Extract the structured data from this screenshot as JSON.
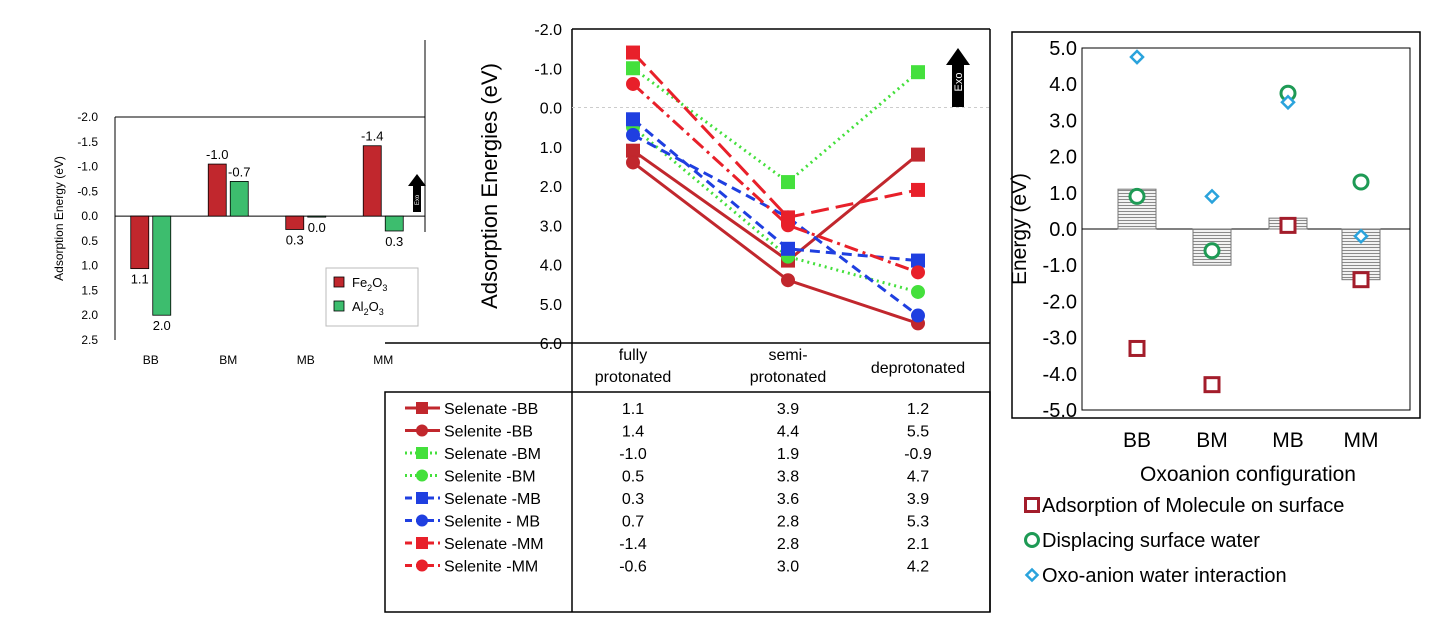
{
  "chart_data": [
    {
      "type": "bar",
      "ylabel": "Adsorption Energy (eV)",
      "categories": [
        "BB",
        "BM",
        "MB",
        "MM"
      ],
      "ylim": [
        -2.0,
        2.5
      ],
      "y_inverted": true,
      "yticks": [
        "-2.0",
        "-1.5",
        "-1.0",
        "-0.5",
        "0.0",
        "0.5",
        "1.0",
        "1.5",
        "2.0",
        "2.5"
      ],
      "ytick_values": [
        -2.0,
        -1.5,
        -1.0,
        -0.5,
        0.0,
        0.5,
        1.0,
        1.5,
        2.0,
        2.5
      ],
      "series": [
        {
          "name": "Fe2O3",
          "color": "#c1272d",
          "values": [
            1.06,
            -1.05,
            0.27,
            -1.42
          ],
          "labels": [
            "1.1",
            "-1.0",
            "0.3",
            "-1.4"
          ]
        },
        {
          "name": "Al2O3",
          "color": "#3dbd6e",
          "values": [
            2.0,
            -0.7,
            0.02,
            0.3
          ],
          "labels": [
            "2.0",
            "-0.7",
            "0.0",
            "0.3"
          ]
        }
      ],
      "legend_position": "bottom-right",
      "arrow_label": "Exo"
    },
    {
      "type": "line",
      "ylabel": "Adsorption Energies (eV)",
      "ylim": [
        -2.0,
        6.0
      ],
      "y_inverted": true,
      "yticks": [
        "-2.0",
        "-1.0",
        "0.0",
        "1.0",
        "2.0",
        "3.0",
        "4.0",
        "5.0",
        "6.0"
      ],
      "ytick_values": [
        -2,
        -1,
        0,
        1,
        2,
        3,
        4,
        5,
        6
      ],
      "categories": [
        "fully protonated",
        "semi-protonated",
        "deprotonated"
      ],
      "category_lines": [
        [
          "fully",
          "protonated"
        ],
        [
          "semi-",
          "protonated"
        ],
        [
          "deprotonated"
        ]
      ],
      "arrow_label": "Exo",
      "series": [
        {
          "name": "Selenate -BB",
          "values": [
            1.1,
            3.9,
            1.2
          ],
          "display": [
            "1.1",
            "3.9",
            "1.2"
          ],
          "color": "#c1272d",
          "marker": "square",
          "dash": "solid"
        },
        {
          "name": "Selenite -BB",
          "values": [
            1.4,
            4.4,
            5.5
          ],
          "display": [
            "1.4",
            "4.4",
            "5.5"
          ],
          "color": "#c1272d",
          "marker": "circle",
          "dash": "solid"
        },
        {
          "name": "Selenate -BM",
          "values": [
            -1.0,
            1.9,
            -0.9
          ],
          "display": [
            "-1.0",
            "1.9",
            "-0.9"
          ],
          "color": "#44e03c",
          "marker": "square",
          "dash": "dot"
        },
        {
          "name": "Selenite -BM",
          "values": [
            0.5,
            3.8,
            4.7
          ],
          "display": [
            "0.5",
            "3.8",
            "4.7"
          ],
          "color": "#44e03c",
          "marker": "circle",
          "dash": "dot"
        },
        {
          "name": "Selenate -MB",
          "values": [
            0.3,
            3.6,
            3.9
          ],
          "display": [
            "0.3",
            "3.6",
            "3.9"
          ],
          "color": "#1f3fe0",
          "marker": "square",
          "dash": "dash"
        },
        {
          "name": "Selenite - MB",
          "values": [
            0.7,
            2.8,
            5.3
          ],
          "display": [
            "0.7",
            "2.8",
            "5.3"
          ],
          "color": "#1f3fe0",
          "marker": "circle",
          "dash": "dash"
        },
        {
          "name": "Selenate -MM",
          "values": [
            -1.4,
            2.8,
            2.1
          ],
          "display": [
            "-1.4",
            "2.8",
            "2.1"
          ],
          "color": "#e8202a",
          "marker": "square",
          "dash": "longdash"
        },
        {
          "name": "Selenite -MM",
          "values": [
            -0.6,
            3.0,
            4.2
          ],
          "display": [
            "-0.6",
            "3.0",
            "4.2"
          ],
          "color": "#e8202a",
          "marker": "circle",
          "dash": "dashdot"
        }
      ]
    },
    {
      "type": "scatter",
      "ylabel": "Energy (eV)",
      "xlabel": "Oxoanion configuration",
      "categories": [
        "BB",
        "BM",
        "MB",
        "MM"
      ],
      "ylim": [
        -5.0,
        5.0
      ],
      "yticks": [
        "5.0",
        "4.0",
        "3.0",
        "2.0",
        "1.0",
        "0.0",
        "-1.0",
        "-2.0",
        "-3.0",
        "-4.0",
        "-5.0"
      ],
      "ytick_values": [
        5,
        4,
        3,
        2,
        1,
        0,
        -1,
        -2,
        -3,
        -4,
        -5
      ],
      "bar_values": [
        1.1,
        -1.0,
        0.3,
        -1.4
      ],
      "series": [
        {
          "name": "Adsorption of Molecule on surface",
          "color": "#a31d2b",
          "marker": "square",
          "values": [
            -3.3,
            -4.3,
            0.1,
            -1.4
          ]
        },
        {
          "name": "Displacing surface water",
          "color": "#1e9a55",
          "marker": "circle",
          "values": [
            0.9,
            -0.6,
            3.75,
            1.3
          ]
        },
        {
          "name": "Oxo-anion water interaction",
          "color": "#2aa3dc",
          "marker": "diamond",
          "values": [
            4.75,
            0.9,
            3.5,
            -0.2
          ]
        }
      ],
      "legend_position": "bottom"
    }
  ]
}
